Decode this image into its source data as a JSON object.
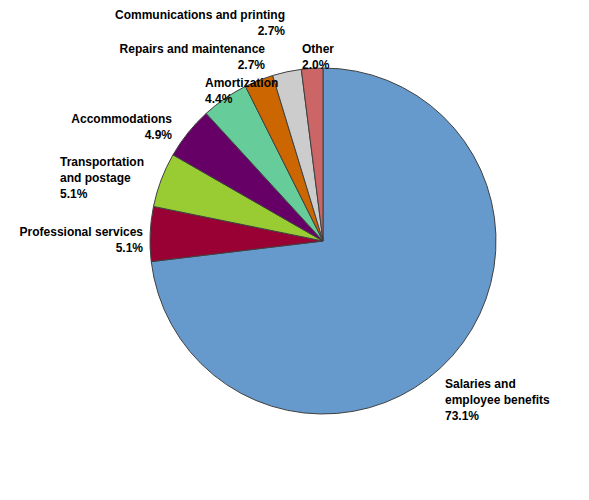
{
  "chart_data": {
    "type": "pie",
    "categories": [
      "Salaries and employee benefits",
      "Professional services",
      "Transportation and postage",
      "Accommodations",
      "Amortization",
      "Repairs and maintenance",
      "Communications and printing",
      "Other"
    ],
    "values": [
      73.1,
      5.1,
      5.1,
      4.9,
      4.4,
      2.7,
      2.7,
      2.0
    ],
    "value_labels": [
      "73.1%",
      "5.1%",
      "5.1%",
      "4.9%",
      "4.4%",
      "2.7%",
      "2.7%",
      "2.0%"
    ],
    "colors": [
      "#6699cc",
      "#990033",
      "#99cc33",
      "#660066",
      "#66cc99",
      "#cc6600",
      "#cccccc",
      "#cc6666"
    ],
    "data_labels": true
  }
}
